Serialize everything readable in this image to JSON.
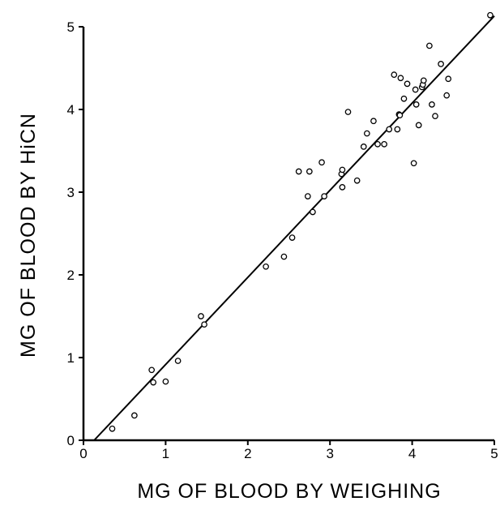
{
  "chart_data": {
    "type": "scatter",
    "title": "",
    "xlabel": "MG  OF  BLOOD  BY  WEIGHING",
    "ylabel": "MG  OF  BLOOD  BY   HiCN",
    "xlim": [
      0,
      5
    ],
    "ylim": [
      0,
      5
    ],
    "xticks": [
      "0",
      "1",
      "2",
      "3",
      "4",
      "5"
    ],
    "yticks": [
      "0",
      "1",
      "2",
      "3",
      "4",
      "5"
    ],
    "grid": false,
    "legend": "none",
    "marker": "open-circle",
    "fit_line": {
      "x": [
        0.13,
        5.0
      ],
      "y": [
        0.0,
        5.13
      ]
    },
    "series": [
      {
        "x": [
          0.35,
          0.62,
          0.83,
          0.85,
          1.0,
          1.15,
          1.43,
          1.47,
          2.22,
          2.44,
          2.54,
          2.62,
          2.73,
          2.75,
          2.79,
          2.9,
          2.93,
          3.14,
          3.15,
          3.15,
          3.22,
          3.33,
          3.41,
          3.45,
          3.53,
          3.58,
          3.66,
          3.72,
          3.78,
          3.82,
          3.84,
          3.85,
          3.86,
          3.9,
          3.94,
          4.02,
          4.04,
          4.05,
          4.08,
          4.12,
          4.13,
          4.14,
          4.21,
          4.24,
          4.28,
          4.35,
          4.42,
          4.44,
          4.95
        ],
        "y": [
          0.14,
          0.3,
          0.85,
          0.7,
          0.71,
          0.96,
          1.5,
          1.4,
          2.1,
          2.22,
          2.45,
          3.25,
          2.95,
          3.25,
          2.76,
          3.36,
          2.95,
          3.22,
          3.06,
          3.27,
          3.97,
          3.14,
          3.55,
          3.71,
          3.86,
          3.58,
          3.58,
          3.76,
          4.42,
          3.76,
          3.94,
          3.93,
          4.38,
          4.13,
          4.31,
          3.35,
          4.24,
          4.06,
          3.81,
          4.27,
          4.3,
          4.35,
          4.77,
          4.06,
          3.92,
          4.55,
          4.17,
          4.37,
          5.14
        ]
      }
    ]
  },
  "style": {
    "ink": "#000000",
    "background": "#ffffff"
  }
}
